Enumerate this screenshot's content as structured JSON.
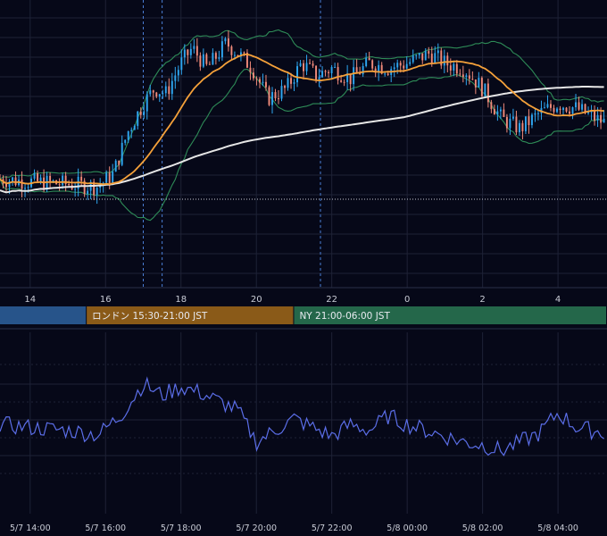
{
  "chart_data": [
    {
      "type": "candlestick",
      "title": "",
      "x_hour_ticks": [
        "14",
        "16",
        "18",
        "20",
        "22",
        "0",
        "2",
        "4"
      ],
      "x_hour_tick_values": [
        14,
        16,
        18,
        20,
        22,
        24,
        26,
        28
      ],
      "x_range_hours": [
        13.2,
        29.3
      ],
      "y_range_norm": [
        0,
        1
      ],
      "grid": true,
      "overlays": [
        {
          "name": "",
          "kind": "bollinger",
          "color": "#2e8b57"
        },
        {
          "name": "",
          "kind": "sma-short",
          "color": "#f5a13a"
        },
        {
          "name": "",
          "kind": "sma-long",
          "color": "#e6e6e6"
        }
      ],
      "horizontal_ref": {
        "y": 0.28,
        "style": "dotted",
        "color": "#c9ccd6"
      },
      "vertical_markers_hours": [
        17.0,
        17.5,
        21.7
      ],
      "up_color": "#2ea6f0",
      "down_color": "#f08a7a",
      "price_keypoints": [
        [
          13.2,
          0.36
        ],
        [
          14.0,
          0.35
        ],
        [
          15.0,
          0.34
        ],
        [
          15.8,
          0.33
        ],
        [
          16.2,
          0.38
        ],
        [
          16.6,
          0.55
        ],
        [
          17.0,
          0.66
        ],
        [
          17.3,
          0.72
        ],
        [
          17.6,
          0.7
        ],
        [
          18.0,
          0.82
        ],
        [
          18.3,
          0.88
        ],
        [
          18.7,
          0.8
        ],
        [
          19.2,
          0.9
        ],
        [
          19.5,
          0.86
        ],
        [
          19.9,
          0.8
        ],
        [
          20.3,
          0.68
        ],
        [
          20.8,
          0.72
        ],
        [
          21.2,
          0.82
        ],
        [
          21.6,
          0.77
        ],
        [
          22.0,
          0.8
        ],
        [
          22.5,
          0.76
        ],
        [
          23.0,
          0.82
        ],
        [
          23.5,
          0.8
        ],
        [
          24.0,
          0.82
        ],
        [
          24.6,
          0.86
        ],
        [
          25.0,
          0.82
        ],
        [
          25.5,
          0.8
        ],
        [
          26.0,
          0.72
        ],
        [
          26.5,
          0.6
        ],
        [
          27.0,
          0.56
        ],
        [
          27.5,
          0.62
        ],
        [
          28.0,
          0.66
        ],
        [
          28.5,
          0.64
        ],
        [
          29.0,
          0.6
        ],
        [
          29.3,
          0.58
        ]
      ]
    },
    {
      "type": "line",
      "title": "",
      "series": [
        {
          "name": "",
          "color": "#5b6ee8"
        }
      ],
      "x_ticks": [
        "5/7 14:00",
        "5/7 16:00",
        "5/7 18:00",
        "5/7 20:00",
        "5/7 22:00",
        "5/8 00:00",
        "5/8 02:00",
        "5/8 04:00"
      ],
      "x_tick_values": [
        14,
        16,
        18,
        20,
        22,
        24,
        26,
        28
      ],
      "osc_keypoints": [
        [
          13.2,
          0.52
        ],
        [
          14.0,
          0.5
        ],
        [
          15.0,
          0.48
        ],
        [
          15.8,
          0.45
        ],
        [
          16.4,
          0.58
        ],
        [
          17.0,
          0.8
        ],
        [
          17.5,
          0.72
        ],
        [
          18.0,
          0.78
        ],
        [
          18.5,
          0.74
        ],
        [
          19.0,
          0.68
        ],
        [
          19.5,
          0.62
        ],
        [
          20.0,
          0.4
        ],
        [
          20.5,
          0.48
        ],
        [
          21.0,
          0.56
        ],
        [
          21.5,
          0.5
        ],
        [
          22.0,
          0.44
        ],
        [
          22.5,
          0.52
        ],
        [
          23.0,
          0.48
        ],
        [
          23.5,
          0.58
        ],
        [
          24.0,
          0.52
        ],
        [
          24.5,
          0.48
        ],
        [
          25.0,
          0.44
        ],
        [
          25.5,
          0.4
        ],
        [
          26.0,
          0.38
        ],
        [
          26.5,
          0.34
        ],
        [
          27.0,
          0.4
        ],
        [
          27.5,
          0.46
        ],
        [
          28.0,
          0.6
        ],
        [
          28.5,
          0.5
        ],
        [
          29.3,
          0.46
        ]
      ],
      "grid": true
    }
  ],
  "sessions": [
    {
      "label": "",
      "start": 13.2,
      "end": 15.5,
      "color": "#27548a"
    },
    {
      "label": "ロンドン 15:30-21:00 JST",
      "start": 15.5,
      "end": 21.0,
      "color": "#8a5a18"
    },
    {
      "label": "NY 21:00-06:00 JST",
      "start": 21.0,
      "end": 29.3,
      "color": "#24674a"
    }
  ],
  "colors": {
    "background": "#060818",
    "grid": "#1e2236",
    "axis_text": "#c9ccd6"
  }
}
